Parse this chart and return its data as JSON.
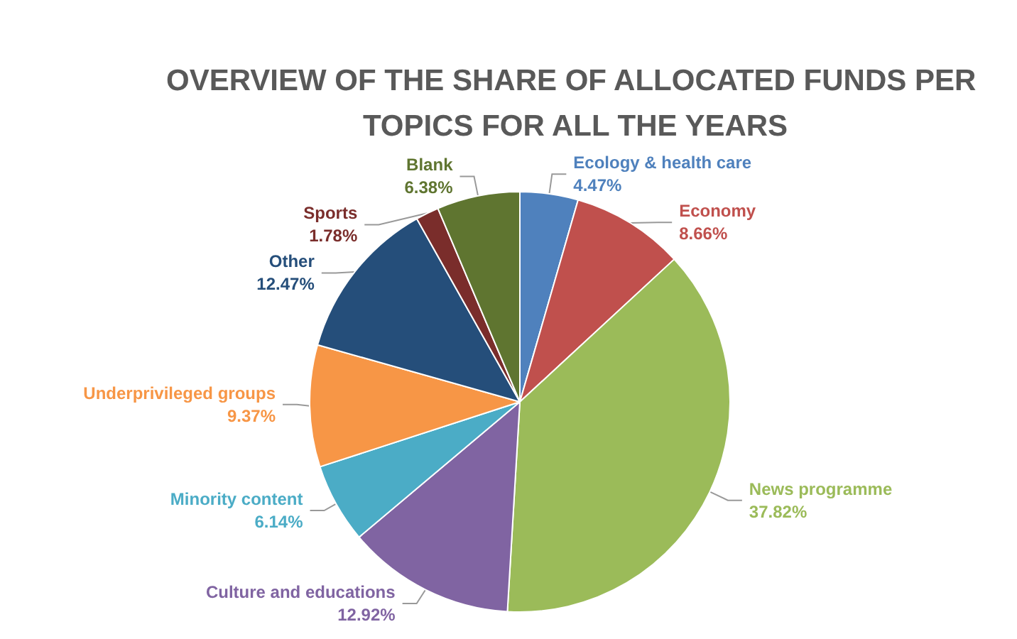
{
  "chart_data": {
    "type": "pie",
    "title": "OVERVIEW OF THE SHARE OF ALLOCATED FUNDS PER TOPICS FOR ALL THE YEARS",
    "categories": [
      "Ecology & health care",
      "Economy",
      "News programme",
      "Culture and educations",
      "Minority content",
      "Underprivileged groups",
      "Other",
      "Sports",
      "Blank"
    ],
    "values": [
      4.47,
      8.66,
      37.82,
      12.92,
      6.14,
      9.37,
      12.47,
      1.78,
      6.38
    ],
    "colors": [
      "#4f81bd",
      "#c0504d",
      "#9bbb59",
      "#8064a2",
      "#4bacc6",
      "#f79646",
      "#254e7a",
      "#7a2d2b",
      "#5f7530"
    ],
    "value_labels": [
      "4.47%",
      "8.66%",
      "37.82%",
      "12.92%",
      "6.14%",
      "9.37%",
      "12.47%",
      "1.78%",
      "6.38%"
    ],
    "legend": false
  }
}
